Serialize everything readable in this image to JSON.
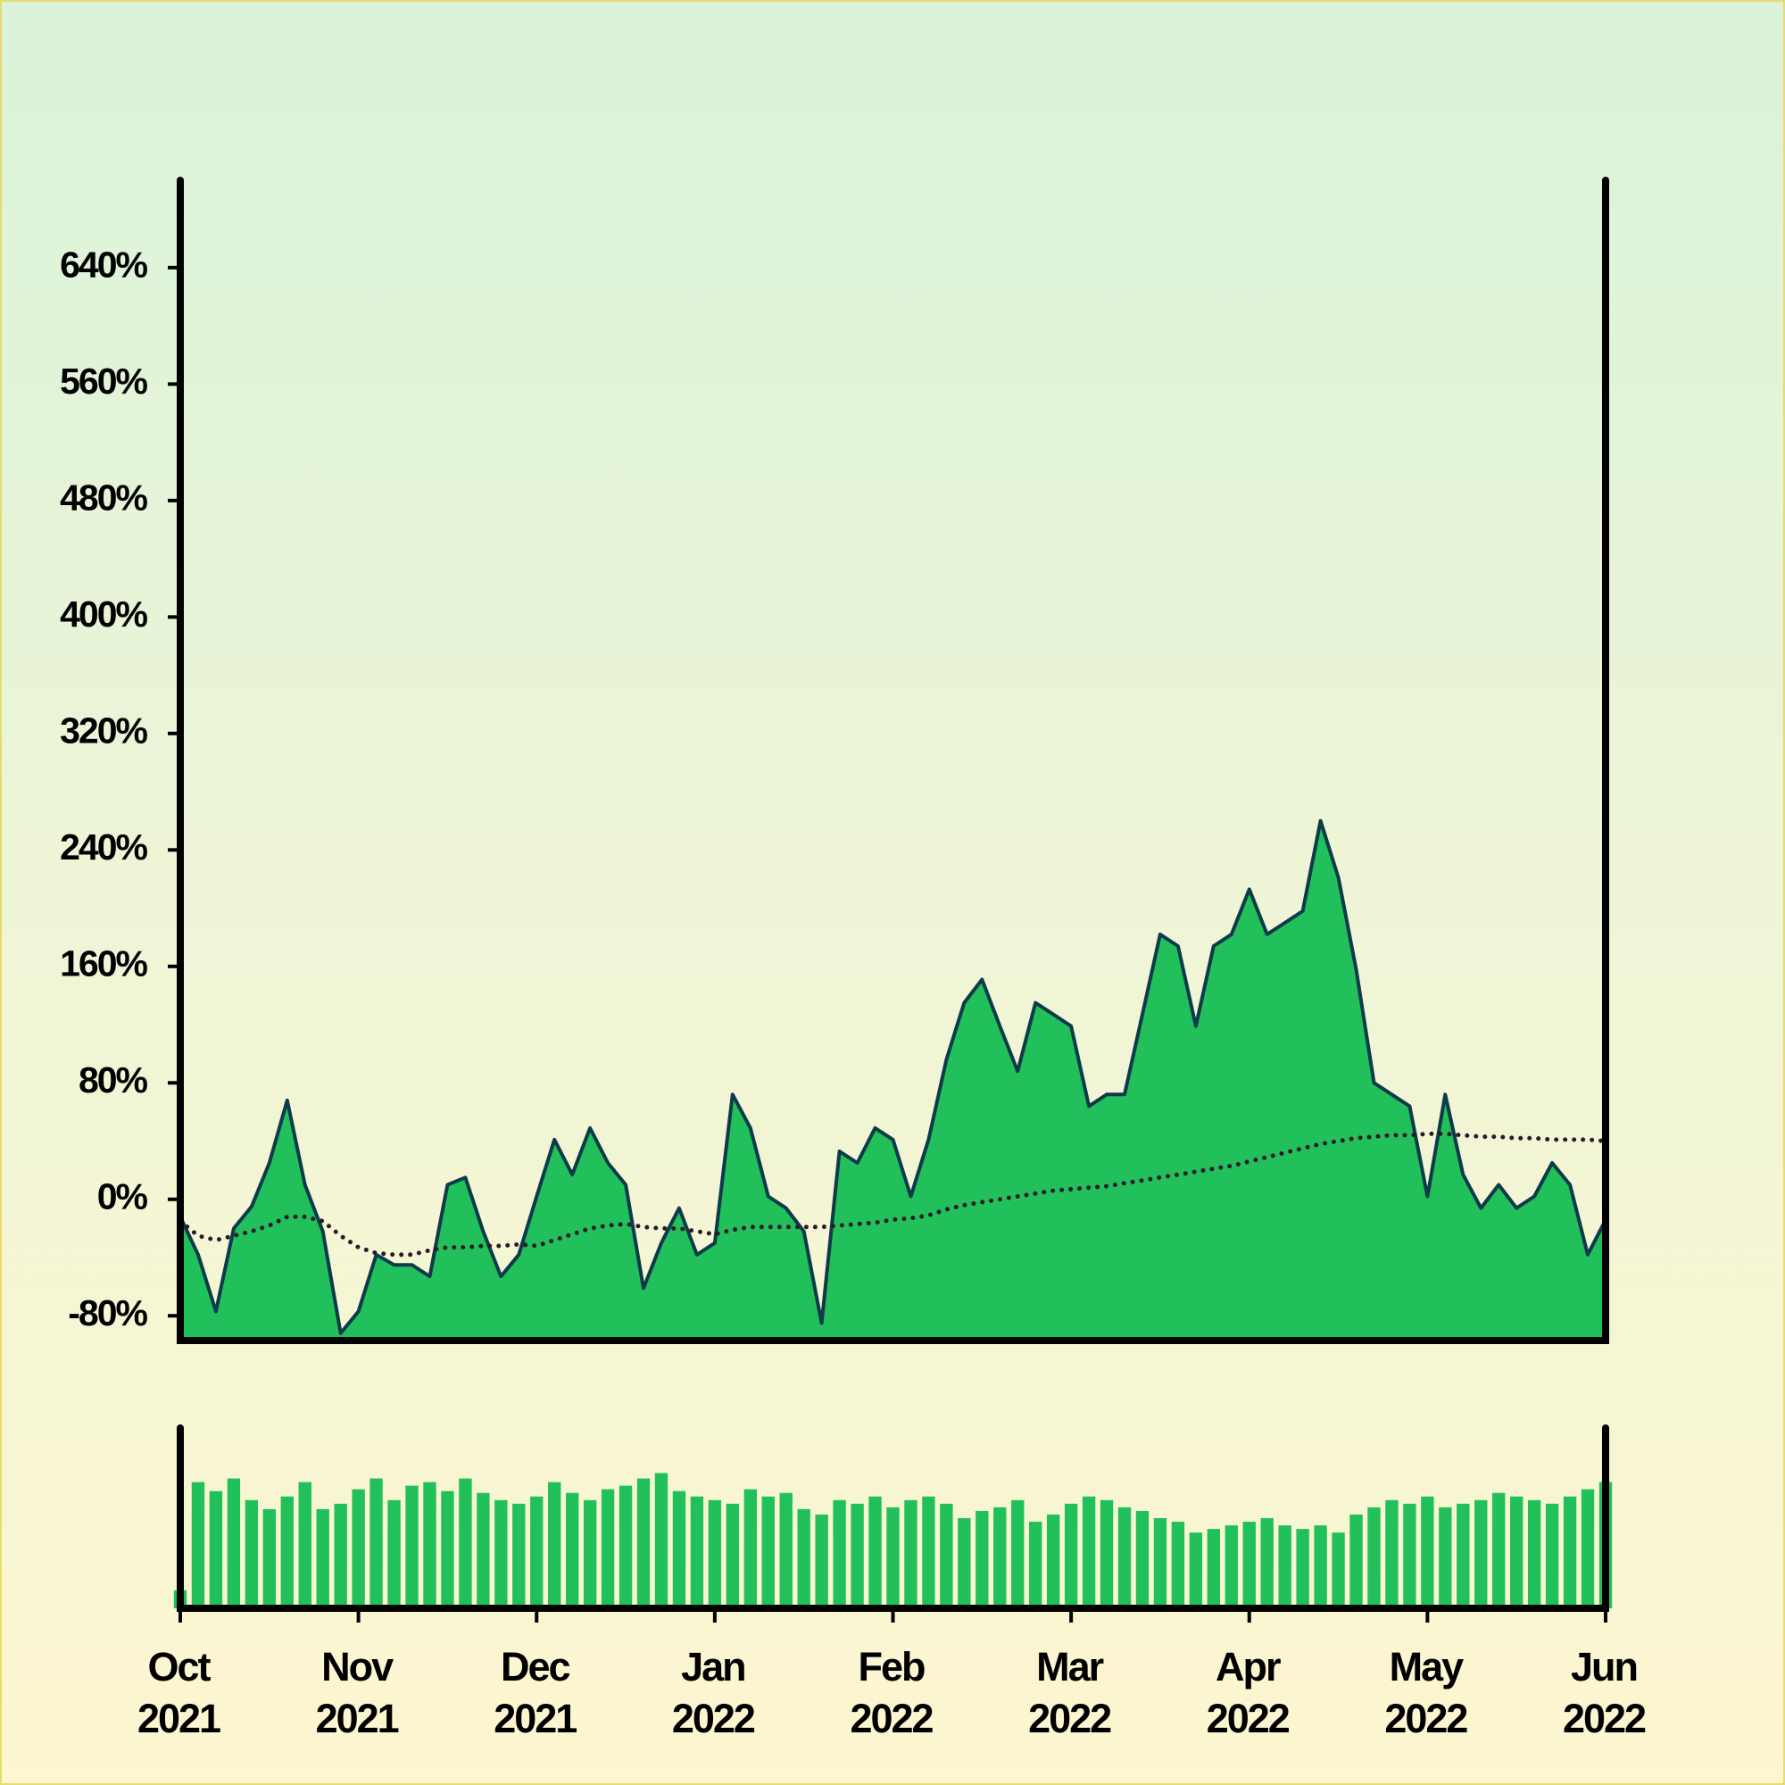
{
  "chart_data": {
    "type": "area",
    "categories": [
      "Oct 2021",
      null,
      null,
      null,
      null,
      null,
      null,
      null,
      null,
      null,
      "Nov 2021",
      null,
      null,
      null,
      null,
      null,
      null,
      null,
      null,
      null,
      "Dec 2021",
      null,
      null,
      null,
      null,
      null,
      null,
      null,
      null,
      null,
      "Jan 2022",
      null,
      null,
      null,
      null,
      null,
      null,
      null,
      null,
      null,
      "Feb 2022",
      null,
      null,
      null,
      null,
      null,
      null,
      null,
      null,
      null,
      "Mar 2022",
      null,
      null,
      null,
      null,
      null,
      null,
      null,
      null,
      null,
      "Apr 2022",
      null,
      null,
      null,
      null,
      null,
      null,
      null,
      null,
      null,
      "May 2022",
      null,
      null,
      null,
      null,
      null,
      null,
      null,
      null,
      null,
      "Jun 2022"
    ],
    "series": [
      {
        "color": "#22c05a",
        "line_color": "#0d3b4a",
        "values": [
          -12,
          -38,
          -77,
          -20,
          -5,
          25,
          68,
          10,
          -22,
          -92,
          -77,
          -38,
          -45,
          -45,
          -53,
          10,
          15,
          -22,
          -53,
          -38,
          2,
          41,
          17,
          49,
          25,
          10,
          -61,
          -30,
          -6,
          -38,
          -30,
          72,
          49,
          2,
          -6,
          -22,
          -85,
          33,
          25,
          49,
          41,
          2,
          41,
          96,
          135,
          151,
          119,
          88,
          135,
          127,
          119,
          64,
          72,
          72,
          127,
          182,
          174,
          119,
          174,
          182,
          213,
          182,
          190,
          198,
          260,
          221,
          158,
          80,
          72,
          64,
          2,
          72,
          17,
          -6,
          10,
          -6,
          2,
          25,
          10,
          -38,
          -14
        ]
      },
      {
        "color": "#2a1a2a",
        "style": "dotted",
        "values": [
          -15,
          -25,
          -28,
          -25,
          -22,
          -18,
          -12,
          -12,
          -15,
          -25,
          -33,
          -37,
          -38,
          -38,
          -35,
          -33,
          -33,
          -32,
          -32,
          -31,
          -32,
          -28,
          -24,
          -20,
          -18,
          -17,
          -19,
          -20,
          -20,
          -22,
          -24,
          -21,
          -19,
          -19,
          -19,
          -19,
          -19,
          -18,
          -17,
          -16,
          -14,
          -13,
          -11,
          -7,
          -4,
          -2,
          0,
          2,
          4,
          6,
          7,
          8,
          9,
          11,
          13,
          15,
          17,
          19,
          21,
          23,
          26,
          29,
          32,
          35,
          38,
          40,
          42,
          43,
          44,
          44,
          45,
          45,
          44,
          43,
          43,
          42,
          42,
          41,
          41,
          41,
          40
        ]
      }
    ],
    "ylim": [
      -97,
      700
    ],
    "yticks": [
      {
        "value": -80,
        "label": "-80%"
      },
      {
        "value": 0,
        "label": "0%"
      },
      {
        "value": 80,
        "label": "80%"
      },
      {
        "value": 160,
        "label": "160%"
      },
      {
        "value": 240,
        "label": "240%"
      },
      {
        "value": 320,
        "label": "320%"
      },
      {
        "value": 400,
        "label": "400%"
      },
      {
        "value": 480,
        "label": "480%"
      },
      {
        "value": 560,
        "label": "560%"
      },
      {
        "value": 640,
        "label": "640%"
      }
    ],
    "volume": {
      "color": "#22c05a",
      "ylim": [
        0,
        100
      ],
      "values": [
        10,
        70,
        65,
        72,
        60,
        55,
        62,
        70,
        55,
        58,
        66,
        72,
        60,
        68,
        70,
        65,
        72,
        64,
        60,
        58,
        62,
        70,
        64,
        60,
        66,
        68,
        72,
        75,
        65,
        62,
        60,
        58,
        66,
        62,
        64,
        55,
        52,
        60,
        58,
        62,
        56,
        60,
        62,
        58,
        50,
        54,
        56,
        60,
        48,
        52,
        58,
        62,
        60,
        56,
        54,
        50,
        48,
        42,
        44,
        46,
        48,
        50,
        46,
        44,
        46,
        42,
        52,
        56,
        60,
        58,
        62,
        56,
        58,
        60,
        64,
        62,
        60,
        58,
        62,
        66,
        70
      ]
    }
  }
}
